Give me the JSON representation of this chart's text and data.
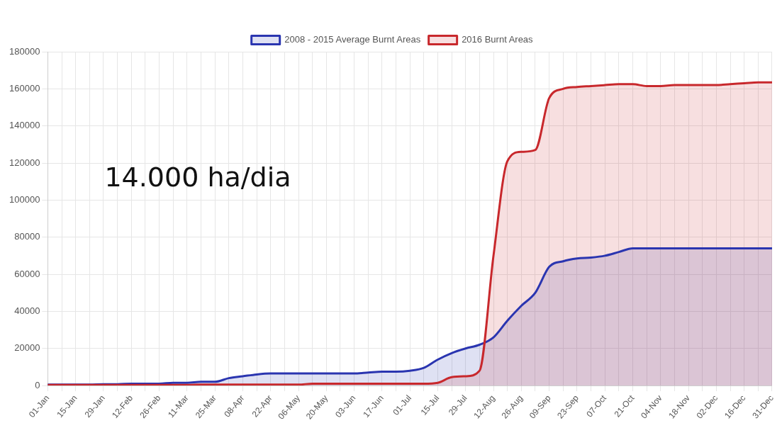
{
  "chart_data": {
    "type": "area",
    "categories": [
      "01-Jan",
      null,
      "15-Jan",
      null,
      "29-Jan",
      null,
      "12-Feb",
      null,
      "26-Feb",
      null,
      "11-Mar",
      null,
      "25-Mar",
      null,
      "08-Apr",
      null,
      "22-Apr",
      null,
      "06-May",
      null,
      "20-May",
      null,
      "03-Jun",
      null,
      "17-Jun",
      null,
      "01-Jul",
      null,
      "15-Jul",
      null,
      "29-Jul",
      null,
      "12-Aug",
      null,
      "26-Aug",
      null,
      "09-Sep",
      null,
      "23-Sep",
      null,
      "07-Oct",
      null,
      "21-Oct",
      null,
      "04-Nov",
      null,
      "18-Nov",
      null,
      "02-Dec",
      null,
      "16-Dec",
      null,
      "31-Dec"
    ],
    "series": [
      {
        "name": "2008 - 2015 Average Burnt Areas",
        "color": "#2a35b0",
        "values": [
          500,
          500,
          500,
          500,
          700,
          700,
          1000,
          1000,
          1000,
          1500,
          1500,
          2000,
          2000,
          4000,
          5000,
          6000,
          6500,
          6500,
          6500,
          6500,
          6500,
          6500,
          6500,
          7000,
          7500,
          7500,
          8000,
          9500,
          14000,
          17500,
          20000,
          22000,
          26000,
          35000,
          43000,
          50000,
          64000,
          67000,
          68500,
          69000,
          70000,
          72000,
          74000,
          74000,
          74000,
          74000,
          74000,
          74000,
          74000,
          74000,
          74000,
          74000,
          74000
        ]
      },
      {
        "name": "2016 Burnt Areas",
        "color": "#c8282c",
        "values": [
          300,
          300,
          300,
          300,
          300,
          300,
          300,
          300,
          300,
          300,
          300,
          500,
          500,
          500,
          500,
          500,
          500,
          500,
          500,
          1000,
          1000,
          1000,
          1000,
          1000,
          1000,
          1000,
          1000,
          1000,
          1500,
          4500,
          5000,
          8000,
          70000,
          121000,
          126000,
          127000,
          155000,
          160000,
          161000,
          161500,
          162000,
          162500,
          162500,
          161500,
          161500,
          162000,
          162000,
          162000,
          162000,
          162500,
          163000,
          163500,
          163500
        ]
      }
    ],
    "ylim": [
      0,
      180000
    ],
    "yticks": [
      0,
      20000,
      40000,
      60000,
      80000,
      100000,
      120000,
      140000,
      160000,
      180000
    ],
    "grid": true,
    "legend": "top",
    "marker": "none",
    "line_style": "solid",
    "annotations": [
      "14.000 ha/dia"
    ]
  }
}
